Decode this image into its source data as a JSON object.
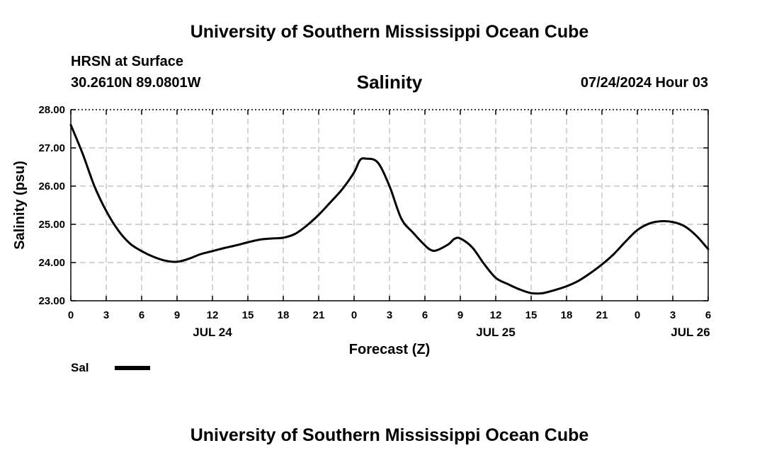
{
  "header": {
    "title": "University of Southern Mississippi Ocean Cube",
    "station": "HRSN at Surface",
    "coords": "30.2610N  89.0801W",
    "variable": "Salinity",
    "datetime": "07/24/2024 Hour 03"
  },
  "footer": {
    "title": "University of Southern Mississippi Ocean Cube"
  },
  "chart_data": {
    "type": "line",
    "title": "Salinity",
    "xlabel": "Forecast (Z)",
    "ylabel": "Salinity (psu)",
    "xlim": [
      0,
      54
    ],
    "ylim": [
      23.0,
      28.0
    ],
    "grid": true,
    "x_ticks": [
      0,
      3,
      6,
      9,
      12,
      15,
      18,
      21,
      24,
      27,
      30,
      33,
      36,
      39,
      42,
      45,
      48,
      51,
      54
    ],
    "x_tick_labels": [
      "0",
      "3",
      "6",
      "9",
      "12",
      "15",
      "18",
      "21",
      "0",
      "3",
      "6",
      "9",
      "12",
      "15",
      "18",
      "21",
      "0",
      "3",
      "6"
    ],
    "day_labels": [
      {
        "x": 12,
        "label": "JUL 24"
      },
      {
        "x": 36,
        "label": "JUL 25"
      },
      {
        "x": 52.5,
        "label": "JUL 26"
      }
    ],
    "y_ticks": [
      23.0,
      24.0,
      25.0,
      26.0,
      27.0,
      28.0
    ],
    "y_tick_labels": [
      "23.00",
      "24.00",
      "25.00",
      "26.00",
      "27.00",
      "28.00"
    ],
    "legend": [
      {
        "label": "Sal",
        "color": "#000000"
      }
    ],
    "legend_position": "bottom-left",
    "series": [
      {
        "name": "Sal",
        "color": "#000000",
        "x": [
          0,
          1,
          2,
          3,
          4,
          5,
          6,
          7,
          8,
          9,
          10,
          11,
          12,
          13,
          14,
          15,
          16,
          17,
          18,
          19,
          20,
          21,
          22,
          23,
          24,
          24.5,
          25,
          26,
          27,
          28,
          29,
          30,
          30.5,
          31,
          32,
          32.5,
          33,
          34,
          35,
          36,
          37,
          38,
          39,
          40,
          41,
          42,
          43,
          44,
          45,
          46,
          47,
          48,
          49,
          50,
          51,
          52,
          53,
          54
        ],
        "values": [
          27.6,
          26.85,
          26.0,
          25.35,
          24.85,
          24.5,
          24.3,
          24.15,
          24.05,
          24.02,
          24.1,
          24.22,
          24.3,
          24.38,
          24.45,
          24.53,
          24.6,
          24.63,
          24.65,
          24.75,
          24.97,
          25.25,
          25.58,
          25.92,
          26.36,
          26.68,
          26.72,
          26.62,
          26.0,
          25.15,
          24.78,
          24.45,
          24.33,
          24.32,
          24.48,
          24.62,
          24.63,
          24.4,
          23.97,
          23.6,
          23.44,
          23.3,
          23.2,
          23.2,
          23.28,
          23.38,
          23.52,
          23.72,
          23.95,
          24.22,
          24.55,
          24.85,
          25.02,
          25.08,
          25.06,
          24.95,
          24.7,
          24.35
        ]
      }
    ]
  }
}
